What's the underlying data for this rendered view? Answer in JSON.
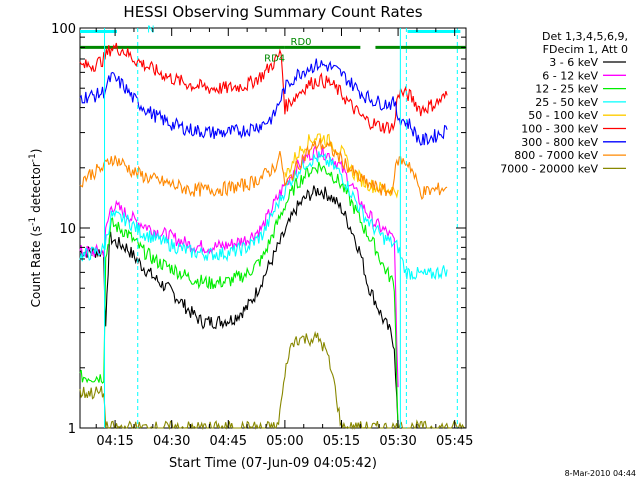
{
  "chart_data": {
    "type": "line",
    "title": "HESSI Observing Summary Count Rates",
    "xlabel": "Start Time (07-Jun-09 04:05:42)",
    "ylabel": "Count Rate (s⁻¹ detector⁻¹)",
    "ylabel_parts": {
      "main": "Count Rate (s",
      "sup1": "-1",
      "mid": " detector",
      "sup2": "-1",
      "end": ")"
    },
    "footer": "8-Mar-2010 04:44",
    "y_scale": "log",
    "ylim": [
      1,
      100
    ],
    "xlim": [
      "04:05:42",
      "05:48:00"
    ],
    "xlim_minutes": [
      5.7,
      108.0
    ],
    "x_ticks": [
      {
        "label": "04:15",
        "m": 15
      },
      {
        "label": "04:30",
        "m": 30
      },
      {
        "label": "04:45",
        "m": 45
      },
      {
        "label": "05:00",
        "m": 60
      },
      {
        "label": "05:15",
        "m": 75
      },
      {
        "label": "05:30",
        "m": 90
      },
      {
        "label": "05:45",
        "m": 105
      }
    ],
    "y_ticks": [
      {
        "label": "1",
        "v": 1
      },
      {
        "label": "10",
        "v": 10
      },
      {
        "label": "100",
        "v": 100
      }
    ],
    "legend_header": [
      "Det 1,3,4,5,6,9,",
      "FDecim 1, Att 0"
    ],
    "legend_placement": "top-right outside",
    "series": [
      {
        "name": "3 - 6 keV",
        "color": "#000000",
        "points": [
          [
            5.7,
            7.6
          ],
          [
            12,
            7.6
          ],
          [
            12.5,
            3
          ],
          [
            13.5,
            9
          ],
          [
            15,
            8.5
          ],
          [
            18,
            8
          ],
          [
            22,
            6.5
          ],
          [
            26,
            5.5
          ],
          [
            30,
            4.8
          ],
          [
            35,
            3.8
          ],
          [
            38,
            3.4
          ],
          [
            42,
            3.4
          ],
          [
            46,
            3.5
          ],
          [
            50,
            4.0
          ],
          [
            52,
            4.6
          ],
          [
            54,
            5.5
          ],
          [
            57,
            7.2
          ],
          [
            60,
            9.5
          ],
          [
            63,
            12.5
          ],
          [
            66,
            14.5
          ],
          [
            69,
            15.5
          ],
          [
            72,
            14.5
          ],
          [
            75,
            12.5
          ],
          [
            78,
            9.5
          ],
          [
            80,
            7.5
          ],
          [
            82,
            5.2
          ],
          [
            84,
            4.3
          ],
          [
            86,
            3.5
          ],
          [
            88,
            3.0
          ],
          [
            89,
            2.6
          ],
          [
            90,
            1
          ]
        ]
      },
      {
        "name": "6 - 12 keV",
        "color": "#ff00ff",
        "points": [
          [
            5.7,
            7.6
          ],
          [
            12,
            7.6
          ],
          [
            12.5,
            9.5
          ],
          [
            14,
            13
          ],
          [
            16,
            12.5
          ],
          [
            20,
            11
          ],
          [
            25,
            9.8
          ],
          [
            30,
            9
          ],
          [
            35,
            8.2
          ],
          [
            40,
            8
          ],
          [
            45,
            8.2
          ],
          [
            50,
            8.8
          ],
          [
            54,
            10
          ],
          [
            57,
            13
          ],
          [
            60,
            16.5
          ],
          [
            63,
            20
          ],
          [
            66,
            23
          ],
          [
            69,
            24.5
          ],
          [
            72,
            23
          ],
          [
            75,
            20
          ],
          [
            78,
            16
          ],
          [
            81,
            12.5
          ],
          [
            84,
            10.5
          ],
          [
            87,
            9.5
          ],
          [
            89,
            8.6
          ],
          [
            90,
            1.6
          ]
        ]
      },
      {
        "name": "12 - 25 keV",
        "color": "#00ee00",
        "points": [
          [
            5.7,
            1.8
          ],
          [
            12,
            1.8
          ],
          [
            12.5,
            7
          ],
          [
            14,
            10.5
          ],
          [
            18,
            9.5
          ],
          [
            22,
            7.8
          ],
          [
            26,
            6.8
          ],
          [
            30,
            6.3
          ],
          [
            35,
            5.6
          ],
          [
            40,
            5.3
          ],
          [
            45,
            5.4
          ],
          [
            50,
            5.9
          ],
          [
            54,
            7
          ],
          [
            57,
            9.5
          ],
          [
            60,
            13
          ],
          [
            63,
            16.5
          ],
          [
            66,
            19
          ],
          [
            69,
            20.5
          ],
          [
            72,
            19
          ],
          [
            75,
            16.5
          ],
          [
            78,
            13
          ],
          [
            81,
            10
          ],
          [
            84,
            8
          ],
          [
            86,
            6.5
          ],
          [
            88,
            5.6
          ],
          [
            89,
            5.2
          ],
          [
            90,
            1
          ]
        ]
      },
      {
        "name": "25 - 50 keV",
        "color": "#00ffff",
        "points": [
          [
            5.7,
            7.2
          ],
          [
            10,
            7.6
          ],
          [
            12,
            7.8
          ],
          [
            14,
            11.5
          ],
          [
            18,
            11
          ],
          [
            22,
            9.5
          ],
          [
            26,
            8.8
          ],
          [
            30,
            8.2
          ],
          [
            35,
            7.6
          ],
          [
            40,
            7.4
          ],
          [
            45,
            7.5
          ],
          [
            50,
            8
          ],
          [
            54,
            9.2
          ],
          [
            57,
            12
          ],
          [
            60,
            15.5
          ],
          [
            63,
            19
          ],
          [
            66,
            21.5
          ],
          [
            69,
            22.5
          ],
          [
            72,
            21
          ],
          [
            75,
            18.5
          ],
          [
            78,
            14.5
          ],
          [
            81,
            11.5
          ],
          [
            84,
            9.8
          ],
          [
            86,
            9
          ],
          [
            88,
            8.5
          ],
          [
            90,
            8
          ],
          [
            92,
            6
          ],
          [
            98,
            5.8
          ],
          [
            103,
            6.2
          ]
        ]
      },
      {
        "name": "50 - 100 keV",
        "color": "#ffcc00",
        "points": [
          [
            60,
            18
          ],
          [
            63,
            23
          ],
          [
            66,
            27
          ],
          [
            69,
            29
          ],
          [
            72,
            27
          ],
          [
            75,
            24
          ],
          [
            78,
            19
          ],
          [
            81,
            17
          ],
          [
            84,
            16
          ],
          [
            88,
            15.5
          ],
          [
            90,
            15.5
          ]
        ]
      },
      {
        "name": "100 - 300 keV",
        "color": "#ff0000",
        "points": [
          [
            5.7,
            64
          ],
          [
            10,
            66
          ],
          [
            12,
            70
          ],
          [
            14,
            80
          ],
          [
            17,
            78
          ],
          [
            20,
            70
          ],
          [
            25,
            62
          ],
          [
            30,
            56
          ],
          [
            35,
            52
          ],
          [
            40,
            50
          ],
          [
            45,
            50
          ],
          [
            50,
            52
          ],
          [
            54,
            58
          ],
          [
            57,
            67
          ],
          [
            59,
            75
          ],
          [
            60,
            40
          ],
          [
            63,
            46
          ],
          [
            66,
            52
          ],
          [
            69,
            55
          ],
          [
            72,
            53
          ],
          [
            75,
            47
          ],
          [
            78,
            40
          ],
          [
            81,
            35
          ],
          [
            84,
            33
          ],
          [
            86,
            32
          ],
          [
            89,
            32
          ],
          [
            90,
            48
          ],
          [
            93,
            46
          ],
          [
            96,
            39
          ],
          [
            100,
            42
          ],
          [
            103,
            46
          ]
        ]
      },
      {
        "name": "300 - 800 keV",
        "color": "#0000ff",
        "points": [
          [
            5.7,
            45
          ],
          [
            10,
            46
          ],
          [
            12,
            48
          ],
          [
            14,
            57
          ],
          [
            17,
            52
          ],
          [
            20,
            44
          ],
          [
            25,
            37
          ],
          [
            30,
            33
          ],
          [
            35,
            31
          ],
          [
            40,
            30
          ],
          [
            45,
            30
          ],
          [
            50,
            31
          ],
          [
            54,
            33
          ],
          [
            57,
            36
          ],
          [
            59,
            45
          ],
          [
            60,
            50
          ],
          [
            63,
            58
          ],
          [
            66,
            63
          ],
          [
            69,
            66
          ],
          [
            72,
            64
          ],
          [
            75,
            59
          ],
          [
            78,
            52
          ],
          [
            81,
            46
          ],
          [
            84,
            43
          ],
          [
            86,
            42
          ],
          [
            89,
            42
          ],
          [
            90,
            36
          ],
          [
            93,
            33
          ],
          [
            96,
            27
          ],
          [
            100,
            29
          ],
          [
            103,
            31
          ]
        ]
      },
      {
        "name": "800 - 7000 keV",
        "color": "#ff8800",
        "points": [
          [
            5.7,
            17
          ],
          [
            8,
            18.5
          ],
          [
            12,
            20
          ],
          [
            14,
            22.5
          ],
          [
            17,
            21
          ],
          [
            20,
            19
          ],
          [
            25,
            17.5
          ],
          [
            30,
            16.5
          ],
          [
            35,
            15.5
          ],
          [
            40,
            15.5
          ],
          [
            45,
            15.8
          ],
          [
            50,
            16.5
          ],
          [
            54,
            18
          ],
          [
            57,
            20
          ],
          [
            59,
            23
          ],
          [
            60,
            16
          ],
          [
            63,
            20
          ],
          [
            66,
            24
          ],
          [
            69,
            26.5
          ],
          [
            72,
            25
          ],
          [
            75,
            22
          ],
          [
            78,
            19
          ],
          [
            81,
            17
          ],
          [
            84,
            16
          ],
          [
            88,
            15
          ],
          [
            90,
            22
          ],
          [
            93,
            21
          ],
          [
            96,
            15
          ],
          [
            100,
            15.5
          ],
          [
            103,
            16
          ]
        ]
      },
      {
        "name": "7000 - 20000 keV",
        "color": "#888800",
        "points": [
          [
            5.7,
            1.5
          ],
          [
            8,
            1.5
          ],
          [
            10,
            1.5
          ],
          [
            12,
            1.5
          ],
          [
            12.5,
            1
          ],
          [
            58,
            1
          ],
          [
            61,
            2.4
          ],
          [
            63,
            2.8
          ],
          [
            66,
            2.8
          ],
          [
            69,
            2.8
          ],
          [
            71,
            2.4
          ],
          [
            73,
            1.7
          ],
          [
            75,
            1
          ],
          [
            108,
            1
          ]
        ]
      }
    ],
    "annotations": [
      {
        "text": "N",
        "m": 23.5,
        "v": 95,
        "color": "#00ffff"
      },
      {
        "text": "RD4",
        "m": 54.5,
        "v": 68,
        "color": "#008800"
      },
      {
        "text": "RD0",
        "m": 61.5,
        "v": 82,
        "color": "#008800"
      }
    ],
    "state_bars": [
      {
        "name": "night",
        "color": "#00ffff",
        "v": 96,
        "ranges": [
          [
            5.7,
            15.5
          ],
          [
            92.5,
            106.5
          ]
        ]
      },
      {
        "name": "saa-rd0",
        "color": "#ffff00",
        "v": 91,
        "ranges": []
      },
      {
        "name": "decimation",
        "color": "#008800",
        "v": 80,
        "ranges": [
          [
            5.7,
            60
          ],
          [
            60,
            80
          ],
          [
            84,
            108
          ]
        ]
      }
    ],
    "vlines": [
      {
        "m": 12.2,
        "color": "#00ffff",
        "style": "solid"
      },
      {
        "m": 21.0,
        "color": "#00ffff",
        "style": "dashed"
      },
      {
        "m": 90.6,
        "color": "#00ffff",
        "style": "solid"
      },
      {
        "m": 92.2,
        "color": "#00ffff",
        "style": "dashed"
      },
      {
        "m": 105.7,
        "color": "#00ffff",
        "style": "dashed"
      }
    ],
    "grid": false
  }
}
